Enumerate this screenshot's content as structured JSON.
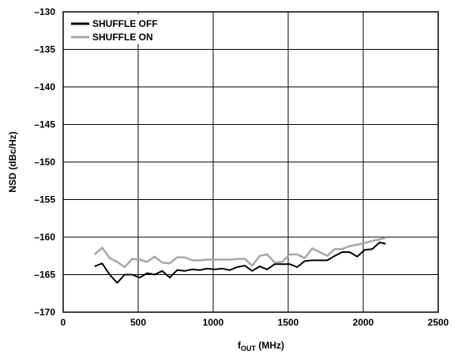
{
  "chart_data": {
    "type": "line",
    "title": "",
    "xlabel": {
      "base": "f",
      "subscript": "OUT",
      "suffix": " (MHz)"
    },
    "ylabel": "NSD (dBc/Hz)",
    "xlim": [
      0,
      2500
    ],
    "ylim": [
      -170,
      -130
    ],
    "xticks": [
      0,
      500,
      1000,
      1500,
      2000,
      2500
    ],
    "xtick_labels": [
      "0",
      "500",
      "1000",
      "1500",
      "2000",
      "2500"
    ],
    "yticks": [
      -130,
      -135,
      -140,
      -145,
      -150,
      -155,
      -160,
      -165,
      -170
    ],
    "ytick_labels": [
      "–130",
      "–135",
      "–140",
      "–145",
      "–150",
      "–155",
      "–160",
      "–165",
      "–170"
    ],
    "grid": true,
    "legend_position": "top-left",
    "series": [
      {
        "name": "SHUFFLE OFF",
        "color": "#000000",
        "x": [
          210,
          260,
          310,
          360,
          410,
          460,
          510,
          560,
          610,
          660,
          710,
          760,
          810,
          860,
          910,
          960,
          1010,
          1060,
          1110,
          1160,
          1210,
          1260,
          1310,
          1360,
          1410,
          1460,
          1510,
          1560,
          1610,
          1660,
          1710,
          1760,
          1810,
          1860,
          1910,
          1960,
          2010,
          2060,
          2110,
          2150
        ],
        "y": [
          -163.9,
          -163.5,
          -165.0,
          -166.1,
          -165.0,
          -165.0,
          -165.4,
          -164.8,
          -165.0,
          -164.5,
          -165.4,
          -164.4,
          -164.5,
          -164.3,
          -164.4,
          -164.2,
          -164.3,
          -164.2,
          -164.4,
          -164.0,
          -163.8,
          -164.5,
          -163.9,
          -164.3,
          -163.6,
          -163.6,
          -163.6,
          -164.0,
          -163.2,
          -163.1,
          -163.1,
          -163.1,
          -162.5,
          -162.0,
          -162.0,
          -162.6,
          -161.7,
          -161.6,
          -160.7,
          -160.9
        ]
      },
      {
        "name": "SHUFFLE ON",
        "color": "#a6a6a6",
        "x": [
          210,
          260,
          310,
          360,
          410,
          460,
          510,
          560,
          610,
          660,
          710,
          760,
          810,
          860,
          910,
          960,
          1010,
          1060,
          1110,
          1160,
          1210,
          1260,
          1310,
          1360,
          1410,
          1460,
          1510,
          1560,
          1610,
          1660,
          1710,
          1760,
          1810,
          1860,
          1910,
          1960,
          2010,
          2060,
          2110,
          2150
        ],
        "y": [
          -162.3,
          -161.4,
          -162.8,
          -163.3,
          -164.0,
          -162.9,
          -163.0,
          -163.3,
          -162.6,
          -163.4,
          -163.5,
          -162.7,
          -162.7,
          -163.1,
          -163.1,
          -163.0,
          -163.0,
          -163.0,
          -163.0,
          -162.9,
          -162.9,
          -163.8,
          -162.5,
          -162.3,
          -163.4,
          -163.3,
          -162.3,
          -162.3,
          -162.8,
          -161.5,
          -162.0,
          -162.5,
          -161.6,
          -161.6,
          -161.2,
          -161.0,
          -160.8,
          -160.5,
          -160.3,
          -160.1
        ]
      }
    ]
  }
}
